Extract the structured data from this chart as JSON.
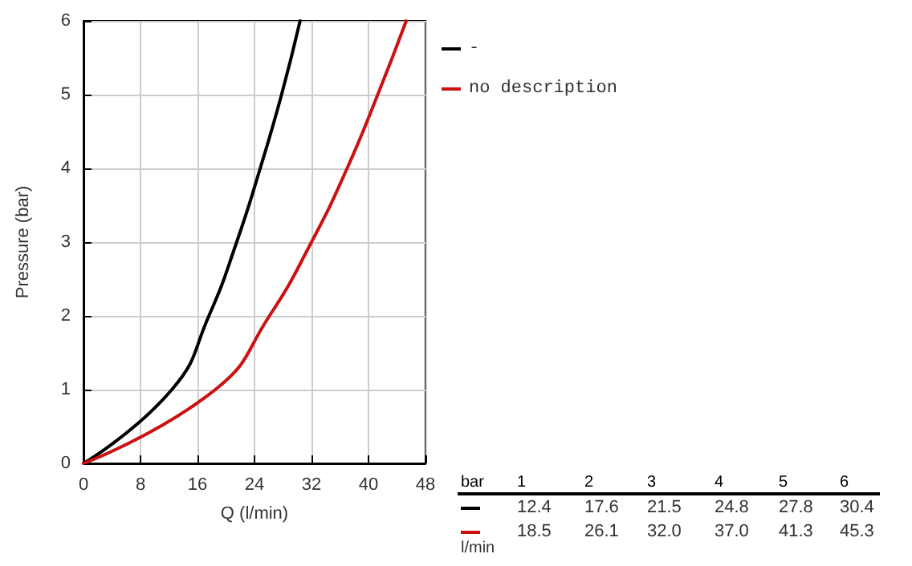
{
  "chart_data": {
    "type": "line",
    "xlabel": "Q (l/min)",
    "ylabel": "Pressure (bar)",
    "xlim": [
      0,
      48
    ],
    "xticks": [
      0,
      8,
      16,
      24,
      32,
      40,
      48
    ],
    "ylim": [
      0,
      6
    ],
    "yticks": [
      0,
      1,
      2,
      3,
      4,
      5,
      6
    ],
    "grid": true,
    "legend": "top right",
    "marker": "none",
    "line_style": "solid",
    "annotations": [
      "bar",
      "1",
      "2",
      "3",
      "4",
      "5",
      "6",
      "12.4",
      "17.6",
      "21.5",
      "24.8",
      "27.8",
      "30.4",
      "18.5",
      "26.1",
      "32.0",
      "37.0",
      "41.3",
      "45.3",
      "l/min"
    ],
    "series": [
      {
        "name": "-",
        "color": "#000000",
        "x": [
          0,
          12.4,
          17.6,
          21.5,
          24.8,
          27.8,
          30.4
        ],
        "values": [
          0,
          1,
          2,
          3,
          4,
          5,
          6
        ]
      },
      {
        "name": "no description",
        "color": "#cc1111",
        "x": [
          0,
          18.5,
          26.1,
          32.0,
          37.0,
          41.3,
          45.3
        ],
        "values": [
          0,
          1,
          2,
          3,
          4,
          5,
          6
        ]
      }
    ]
  }
}
